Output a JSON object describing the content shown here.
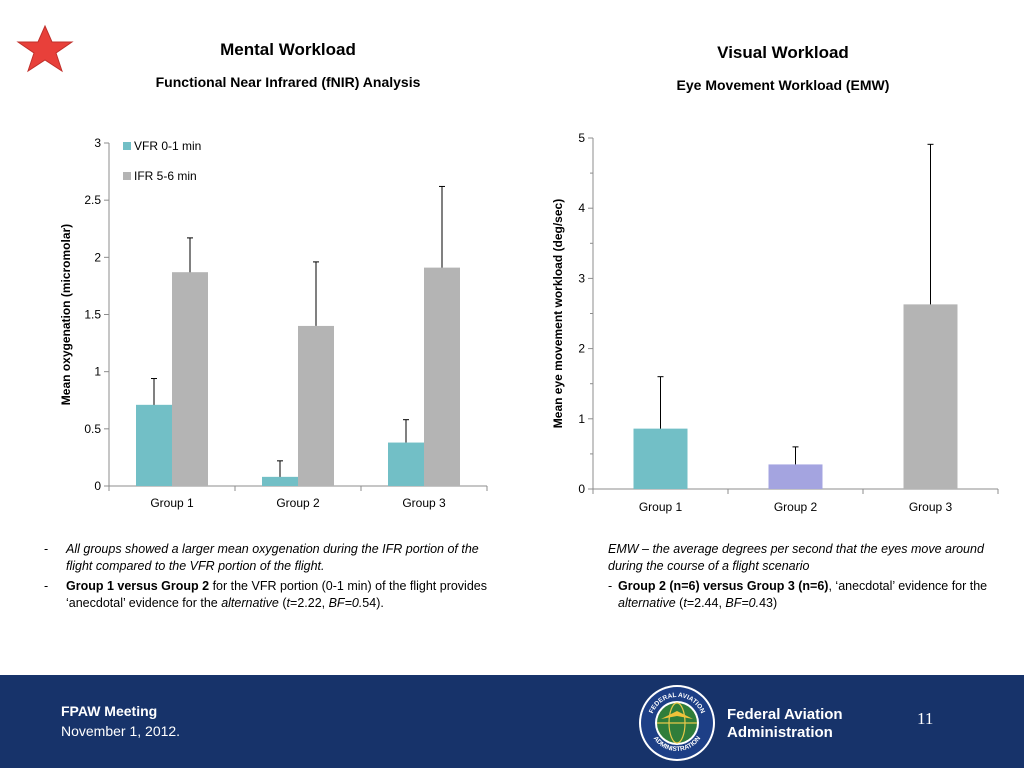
{
  "left": {
    "title": "Mental Workload",
    "subtitle": "Functional Near Infrared (fNIR) Analysis",
    "notes": [
      {
        "bullet": "-",
        "parts": [
          {
            "text": "All groups showed a larger mean oxygenation during the IFR portion of the flight compared to the VFR portion of the flight.",
            "style": "italic"
          }
        ]
      },
      {
        "bullet": "-",
        "parts": [
          {
            "text": "Group 1 versus Group 2",
            "style": "bold"
          },
          {
            "text": " for the VFR portion (0-1 min) of the flight provides ‘anecdotal’ evidence for the ",
            "style": "normal"
          },
          {
            "text": "alternative",
            "style": "italic"
          },
          {
            "text": " (",
            "style": "normal"
          },
          {
            "text": "t",
            "style": "italic"
          },
          {
            "text": "=2.22, ",
            "style": "normal"
          },
          {
            "text": "BF=0.",
            "style": "italic"
          },
          {
            "text": "54).",
            "style": "normal"
          }
        ]
      }
    ]
  },
  "right": {
    "title": "Visual Workload",
    "subtitle": "Eye Movement Workload (EMW)",
    "notes": [
      {
        "bullet": "",
        "parts": [
          {
            "text": "EMW – the average degrees per second that the eyes move around during the course of a flight scenario",
            "style": "italic"
          }
        ]
      },
      {
        "bullet": "-",
        "parts": [
          {
            "text": "Group 2 (n=6) versus Group 3 (n=6)",
            "style": "bold"
          },
          {
            "text": ", ‘anecdotal’ evidence for the ",
            "style": "normal"
          },
          {
            "text": "alternative",
            "style": "italic"
          },
          {
            "text": " (",
            "style": "normal"
          },
          {
            "text": "t",
            "style": "italic"
          },
          {
            "text": "=2.44, ",
            "style": "normal"
          },
          {
            "text": "BF=0.",
            "style": "italic"
          },
          {
            "text": "43)",
            "style": "normal"
          }
        ]
      }
    ]
  },
  "chart_data": [
    {
      "type": "bar",
      "title": "",
      "xlabel": "",
      "ylabel": "Mean oxygenation (micromolar)",
      "ylim": [
        0,
        3
      ],
      "yticks": [
        "0",
        "0.5",
        "1",
        "1.5",
        "2",
        "2.5",
        "3"
      ],
      "categories": [
        "Group 1",
        "Group 2",
        "Group 3"
      ],
      "legend": "top-left",
      "series": [
        {
          "name": "VFR 0-1 min",
          "color": "#72bfc6",
          "values": [
            0.71,
            0.08,
            0.38
          ],
          "error_upper": [
            0.94,
            0.22,
            0.58
          ]
        },
        {
          "name": "IFR 5-6 min",
          "color": "#b4b4b4",
          "values": [
            1.87,
            1.4,
            1.91
          ],
          "error_upper": [
            2.17,
            1.96,
            2.62
          ]
        }
      ]
    },
    {
      "type": "bar",
      "title": "",
      "xlabel": "",
      "ylabel": "Mean eye movement workload (deg/sec)",
      "ylim": [
        0,
        5
      ],
      "yticks": [
        "0",
        "1",
        "2",
        "3",
        "4",
        "5"
      ],
      "categories": [
        "Group 1",
        "Group 2",
        "Group 3"
      ],
      "series": [
        {
          "values": [
            0.86,
            0.35,
            2.63
          ],
          "colors": [
            "#72bfc6",
            "#a4a4e0",
            "#b4b4b4"
          ],
          "error_upper": [
            1.6,
            0.6,
            4.91
          ]
        }
      ]
    }
  ],
  "footer": {
    "meeting": "FPAW Meeting",
    "date": "November 1, 2012.",
    "org_line1": "Federal Aviation",
    "org_line2": "Administration",
    "seal_top": "FEDERAL AVIATION",
    "seal_bottom": "ADMINISTRATION",
    "page_number": "11"
  },
  "icons": {
    "star": "red-star-icon",
    "seal": "faa-seal-icon"
  },
  "colors": {
    "footer_bg": "#17336a",
    "star": "#e8403a",
    "vfr": "#72bfc6",
    "ifr": "#b4b4b4",
    "group2_emw": "#a4a4e0"
  }
}
